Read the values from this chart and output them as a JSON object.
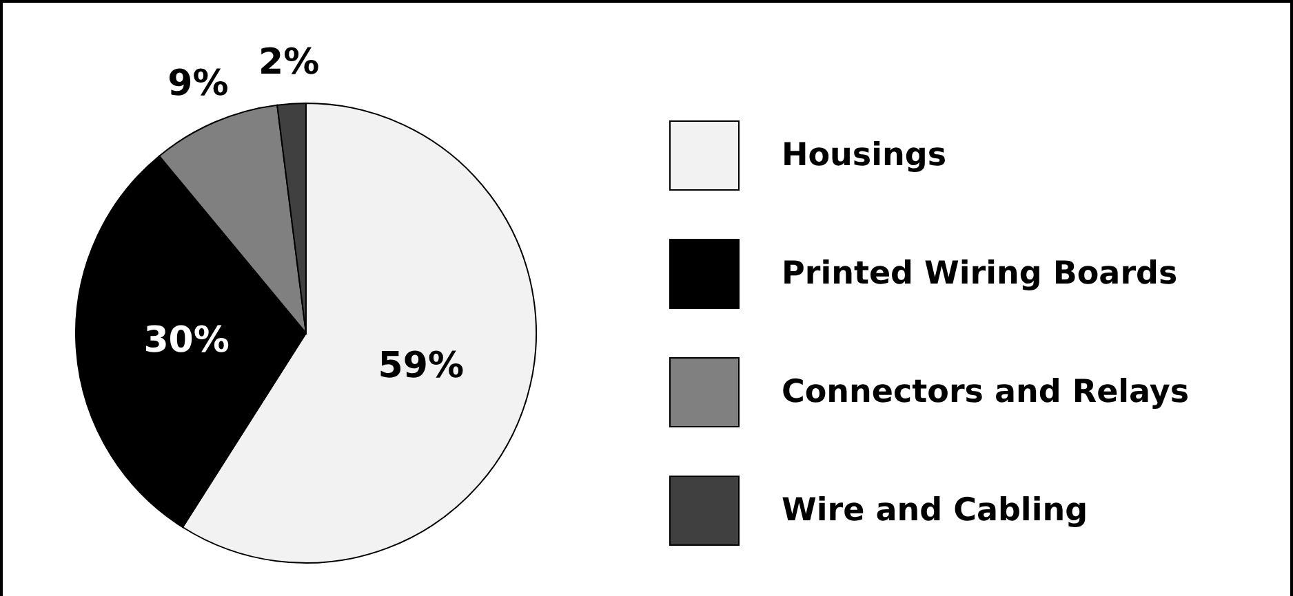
{
  "chart_data": {
    "type": "pie",
    "categories": [
      "Housings",
      "Printed Wiring Boards",
      "Connectors and Relays",
      "Wire and Cabling"
    ],
    "values": [
      59,
      30,
      9,
      2
    ],
    "value_labels": [
      "59%",
      "30%",
      "9%",
      "2%"
    ],
    "colors": [
      "#f2f2f2",
      "#000000",
      "#808080",
      "#404040"
    ],
    "legend": "right"
  }
}
